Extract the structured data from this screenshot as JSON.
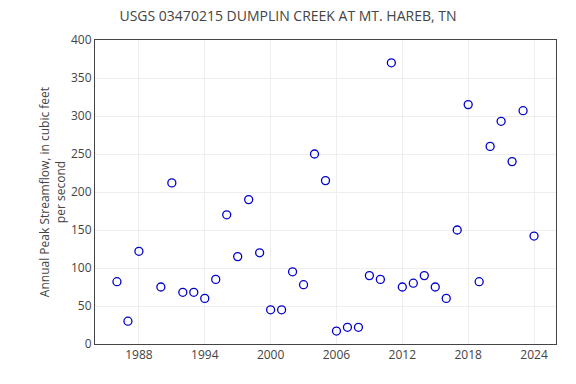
{
  "chart_data": {
    "type": "scatter",
    "title": "USGS 03470215 DUMPLIN CREEK AT MT. HAREB, TN",
    "ylabel": "Annual Peak Streamflow, in cubic feet\nper second",
    "x": [
      1986,
      1987,
      1988,
      1990,
      1991,
      1992,
      1993,
      1994,
      1995,
      1996,
      1997,
      1998,
      1999,
      2000,
      2001,
      2002,
      2003,
      2004,
      2005,
      2006,
      2007,
      2008,
      2009,
      2010,
      2011,
      2012,
      2013,
      2014,
      2015,
      2016,
      2017,
      2018,
      2019,
      2020,
      2021,
      2022,
      2023,
      2024
    ],
    "values": [
      82,
      30,
      122,
      75,
      212,
      68,
      68,
      60,
      85,
      170,
      115,
      190,
      120,
      45,
      45,
      95,
      78,
      250,
      215,
      17,
      22,
      22,
      90,
      85,
      370,
      75,
      80,
      90,
      75,
      60,
      150,
      315,
      82,
      260,
      293,
      240,
      307,
      142
    ],
    "color": "#0000CC",
    "marker": "circle-open",
    "xlim": [
      1984,
      2026
    ],
    "ylim": [
      0,
      400
    ],
    "xticks": [
      1988,
      1994,
      2000,
      2006,
      2012,
      2018,
      2024
    ],
    "yticks": [
      0,
      50,
      100,
      150,
      200,
      250,
      300,
      350,
      400
    ],
    "grid": true
  }
}
